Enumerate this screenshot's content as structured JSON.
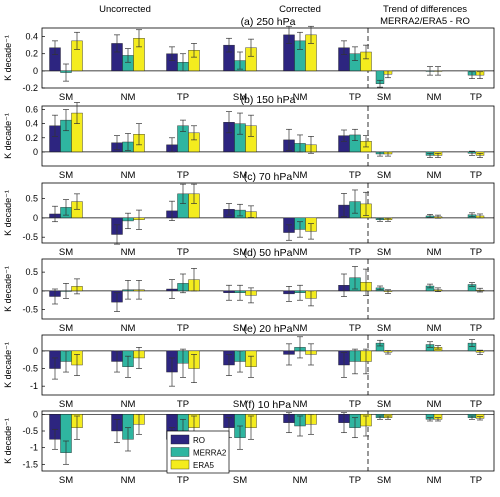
{
  "headers": {
    "uncorrected": "Uncorrected",
    "corrected": "Corrected",
    "trend_line1": "Trend of differences",
    "trend_line2": "MERRA2/ERA5 - RO"
  },
  "ylabel": "K decade⁻¹",
  "colors": {
    "RO": "#2d2580",
    "MERRA2": "#2fb5a0",
    "ERA5": "#f4ec1e"
  },
  "chart_data": {
    "type": "bar",
    "groups": [
      "SM",
      "NM",
      "TP"
    ],
    "sections": [
      "Uncorrected",
      "Corrected",
      "Trend of differences"
    ],
    "legend": [
      {
        "name": "RO",
        "color": "#2d2580"
      },
      {
        "name": "MERRA2",
        "color": "#2fb5a0"
      },
      {
        "name": "ERA5",
        "color": "#f4ec1e"
      }
    ],
    "panels": [
      {
        "title": "(a) 250 hPa",
        "ylim": [
          -0.2,
          0.5
        ],
        "yticks": [
          -0.2,
          0,
          0.2,
          0.4
        ],
        "uncorrected": {
          "SM": [
            0.27,
            -0.02,
            0.35
          ],
          "NM": [
            0.32,
            0.18,
            0.38
          ],
          "TP": [
            0.2,
            0.1,
            0.24
          ]
        },
        "uncorrected_err": {
          "SM": [
            0.08,
            0.1,
            0.1
          ],
          "NM": [
            0.1,
            0.08,
            0.1
          ],
          "TP": [
            0.08,
            0.1,
            0.08
          ]
        },
        "corrected": {
          "SM": [
            0.3,
            0.12,
            0.27
          ],
          "NM": [
            0.42,
            0.35,
            0.42
          ],
          "TP": [
            0.27,
            0.2,
            0.22
          ]
        },
        "corrected_err": {
          "SM": [
            0.08,
            0.1,
            0.1
          ],
          "NM": [
            0.1,
            0.1,
            0.1
          ],
          "TP": [
            0.08,
            0.08,
            0.08
          ]
        },
        "trend": {
          "SM": [
            -0.15,
            -0.04
          ],
          "NM": [
            0.0,
            0.0
          ],
          "TP": [
            -0.05,
            -0.05
          ]
        },
        "trend_err": {
          "SM": [
            0.04,
            0.04
          ],
          "NM": [
            0.05,
            0.05
          ],
          "TP": [
            0.04,
            0.04
          ]
        }
      },
      {
        "title": "(b) 150 hPa",
        "ylim": [
          -0.2,
          0.65
        ],
        "yticks": [
          0,
          0.2,
          0.4,
          0.6
        ],
        "uncorrected": {
          "SM": [
            0.37,
            0.45,
            0.55
          ],
          "NM": [
            0.13,
            0.14,
            0.25
          ],
          "TP": [
            0.1,
            0.37,
            0.27
          ]
        },
        "uncorrected_err": {
          "SM": [
            0.15,
            0.15,
            0.15
          ],
          "NM": [
            0.1,
            0.12,
            0.15
          ],
          "TP": [
            0.1,
            0.08,
            0.1
          ]
        },
        "corrected": {
          "SM": [
            0.42,
            0.4,
            0.37
          ],
          "NM": [
            0.17,
            0.12,
            0.1
          ],
          "TP": [
            0.23,
            0.24,
            0.15
          ]
        },
        "corrected_err": {
          "SM": [
            0.15,
            0.15,
            0.15
          ],
          "NM": [
            0.15,
            0.12,
            0.12
          ],
          "TP": [
            0.08,
            0.08,
            0.08
          ]
        },
        "trend": {
          "SM": [
            -0.03,
            -0.03
          ],
          "NM": [
            -0.05,
            -0.05
          ],
          "TP": [
            -0.02,
            -0.05
          ]
        },
        "trend_err": {
          "SM": [
            0.03,
            0.03
          ],
          "NM": [
            0.03,
            0.03
          ],
          "TP": [
            0.03,
            0.03
          ]
        }
      },
      {
        "title": "(c) 70 hPa",
        "ylim": [
          -0.65,
          0.9
        ],
        "yticks": [
          -0.5,
          0,
          0.5
        ],
        "uncorrected": {
          "SM": [
            0.1,
            0.27,
            0.42
          ],
          "NM": [
            -0.43,
            -0.08,
            -0.05
          ],
          "TP": [
            0.18,
            0.62,
            0.62
          ]
        },
        "uncorrected_err": {
          "SM": [
            0.2,
            0.2,
            0.2
          ],
          "NM": [
            0.25,
            0.2,
            0.25
          ],
          "TP": [
            0.25,
            0.25,
            0.25
          ]
        },
        "corrected": {
          "SM": [
            0.22,
            0.2,
            0.16
          ],
          "NM": [
            -0.38,
            -0.3,
            -0.35
          ],
          "TP": [
            0.33,
            0.42,
            0.36
          ]
        },
        "corrected_err": {
          "SM": [
            0.15,
            0.15,
            0.15
          ],
          "NM": [
            0.2,
            0.2,
            0.2
          ],
          "TP": [
            0.3,
            0.3,
            0.3
          ]
        },
        "trend": {
          "SM": [
            -0.05,
            -0.05
          ],
          "NM": [
            0.05,
            0.03
          ],
          "TP": [
            0.08,
            0.05
          ]
        },
        "trend_err": {
          "SM": [
            0.04,
            0.04
          ],
          "NM": [
            0.04,
            0.04
          ],
          "TP": [
            0.05,
            0.05
          ]
        }
      },
      {
        "title": "(d) 50 hPa",
        "ylim": [
          -0.75,
          0.85
        ],
        "yticks": [
          -0.5,
          0,
          0.5
        ],
        "uncorrected": {
          "SM": [
            -0.15,
            0.0,
            0.12
          ],
          "NM": [
            -0.3,
            0.03,
            0.03
          ],
          "TP": [
            0.05,
            0.2,
            0.3
          ]
        },
        "uncorrected_err": {
          "SM": [
            0.2,
            0.2,
            0.2
          ],
          "NM": [
            0.25,
            0.25,
            0.25
          ],
          "TP": [
            0.25,
            0.25,
            0.3
          ]
        },
        "corrected": {
          "SM": [
            -0.05,
            -0.05,
            -0.12
          ],
          "NM": [
            -0.08,
            -0.05,
            -0.2
          ],
          "TP": [
            0.15,
            0.35,
            0.23
          ]
        },
        "corrected_err": {
          "SM": [
            0.2,
            0.2,
            0.2
          ],
          "NM": [
            0.2,
            0.2,
            0.2
          ],
          "TP": [
            0.3,
            0.3,
            0.35
          ]
        },
        "trend": {
          "SM": [
            0.08,
            -0.02
          ],
          "NM": [
            0.13,
            0.03
          ],
          "TP": [
            0.17,
            0.02
          ]
        },
        "trend_err": {
          "SM": [
            0.05,
            0.05
          ],
          "NM": [
            0.05,
            0.05
          ],
          "TP": [
            0.05,
            0.05
          ]
        }
      },
      {
        "title": "(e) 20 hPa",
        "ylim": [
          -1.25,
          0.45
        ],
        "yticks": [
          -1,
          -0.5,
          0
        ],
        "uncorrected": {
          "SM": [
            -0.5,
            -0.3,
            -0.4
          ],
          "NM": [
            -0.3,
            -0.45,
            -0.2
          ],
          "TP": [
            -0.6,
            -0.35,
            -0.5
          ]
        },
        "uncorrected_err": {
          "SM": [
            0.3,
            0.3,
            0.3
          ],
          "NM": [
            0.3,
            0.3,
            0.3
          ],
          "TP": [
            0.4,
            0.4,
            0.4
          ]
        },
        "corrected": {
          "SM": [
            -0.4,
            -0.3,
            -0.45
          ],
          "NM": [
            -0.1,
            0.1,
            -0.1
          ],
          "TP": [
            -0.4,
            -0.3,
            -0.3
          ]
        },
        "corrected_err": {
          "SM": [
            0.3,
            0.3,
            0.3
          ],
          "NM": [
            0.3,
            0.3,
            0.3
          ],
          "TP": [
            0.35,
            0.35,
            0.35
          ]
        },
        "trend": {
          "SM": [
            0.22,
            -0.04
          ],
          "NM": [
            0.18,
            0.1
          ],
          "TP": [
            0.22,
            -0.04
          ]
        },
        "trend_err": {
          "SM": [
            0.08,
            0.05
          ],
          "NM": [
            0.08,
            0.05
          ],
          "TP": [
            0.1,
            0.06
          ]
        }
      },
      {
        "title": "(f) 10 hPa",
        "ylim": [
          -1.7,
          0.1
        ],
        "yticks": [
          -1.5,
          -1,
          -0.5,
          0
        ],
        "uncorrected": {
          "SM": [
            -0.75,
            -1.15,
            -0.4
          ],
          "NM": [
            -0.5,
            -0.75,
            -0.3
          ],
          "TP": [
            -0.75,
            -0.5,
            -0.4
          ]
        },
        "uncorrected_err": {
          "SM": [
            0.3,
            0.35,
            0.35
          ],
          "NM": [
            0.35,
            0.35,
            0.3
          ],
          "TP": [
            0.35,
            0.35,
            0.35
          ]
        },
        "corrected": {
          "SM": [
            -0.4,
            -0.7,
            -0.4
          ],
          "NM": [
            -0.25,
            -0.35,
            -0.3
          ],
          "TP": [
            -0.25,
            -0.4,
            -0.35
          ]
        },
        "corrected_err": {
          "SM": [
            0.3,
            0.35,
            0.35
          ],
          "NM": [
            0.3,
            0.3,
            0.3
          ],
          "TP": [
            0.3,
            0.3,
            0.3
          ]
        },
        "trend": {
          "SM": [
            -0.1,
            -0.1
          ],
          "NM": [
            -0.15,
            -0.15
          ],
          "TP": [
            -0.1,
            -0.12
          ]
        },
        "trend_err": {
          "SM": [
            0.05,
            0.05
          ],
          "NM": [
            0.05,
            0.05
          ],
          "TP": [
            0.05,
            0.05
          ]
        }
      }
    ]
  }
}
